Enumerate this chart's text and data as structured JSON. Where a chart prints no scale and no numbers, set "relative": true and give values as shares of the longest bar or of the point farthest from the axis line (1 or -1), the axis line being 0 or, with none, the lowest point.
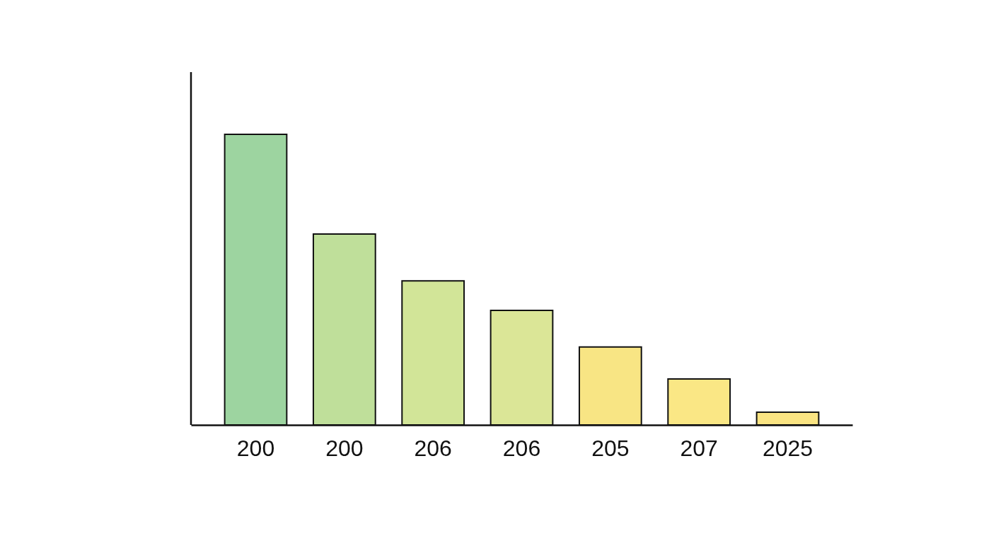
{
  "chart_data": {
    "type": "bar",
    "relative": true,
    "categories": [
      "200",
      "200",
      "206",
      "206",
      "205",
      "207",
      "2025"
    ],
    "values": [
      1,
      0.657,
      0.496,
      0.394,
      0.268,
      0.158,
      0.044
    ],
    "colors": [
      "#9dd4a0",
      "#bfdf9a",
      "#d2e598",
      "#dbe697",
      "#f8e584",
      "#fae785",
      "#fae482"
    ],
    "grid": false
  }
}
